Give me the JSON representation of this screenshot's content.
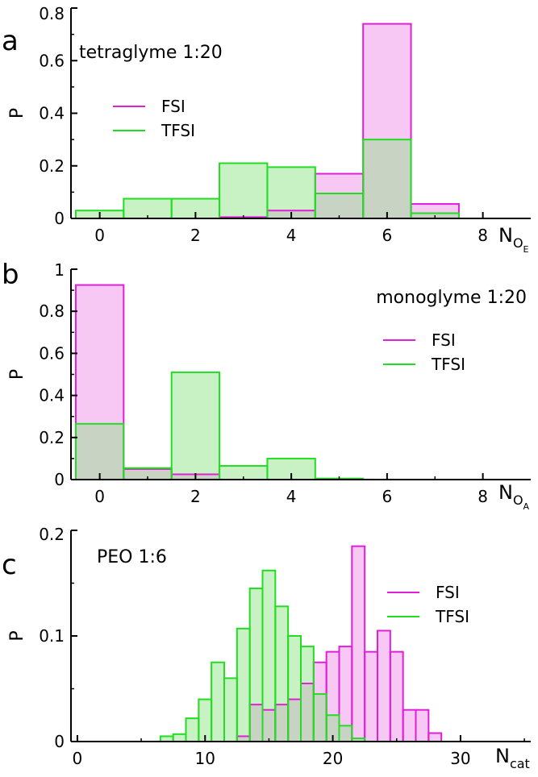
{
  "colors": {
    "fsi": "#e020d8",
    "fsi_fill": "#f7c8f4",
    "tfsi": "#22dd22",
    "tfsi_fill": "#c8f2c4",
    "overlap": "#c8d3c4"
  },
  "chart_data": [
    {
      "type": "bar",
      "panel_letter": "a",
      "title": "tetraglyme 1:20",
      "xlabel": {
        "main": "N",
        "sub1": "O",
        "sub2": "E"
      },
      "ylabel": "P",
      "xlim": [
        -0.6,
        9.0
      ],
      "ylim": [
        0,
        0.8
      ],
      "bin_width": 1,
      "xticks": [
        0,
        2,
        4,
        6,
        8
      ],
      "yticks": [
        0,
        0.2,
        0.4,
        0.6,
        0.8
      ],
      "ytick_labels": [
        "0",
        "0.2",
        "0.4",
        "0.6",
        "0.8"
      ],
      "series": [
        {
          "name": "FSI",
          "x": [
            3,
            4,
            5,
            6,
            7
          ],
          "values": [
            0.005,
            0.03,
            0.17,
            0.74,
            0.055
          ]
        },
        {
          "name": "TFSI",
          "x": [
            0,
            1,
            2,
            3,
            4,
            5,
            6,
            7
          ],
          "values": [
            0.03,
            0.075,
            0.075,
            0.21,
            0.195,
            0.095,
            0.3,
            0.02
          ]
        }
      ]
    },
    {
      "type": "bar",
      "panel_letter": "b",
      "title": "monoglyme 1:20",
      "xlabel": {
        "main": "N",
        "sub1": "O",
        "sub2": "A"
      },
      "ylabel": "P",
      "xlim": [
        -0.6,
        9.0
      ],
      "ylim": [
        0,
        1.0
      ],
      "bin_width": 1,
      "xticks": [
        0,
        2,
        4,
        6,
        8
      ],
      "yticks": [
        0,
        0.2,
        0.4,
        0.6,
        0.8,
        1.0
      ],
      "ytick_labels": [
        "0",
        "0.2",
        "0.4",
        "0.6",
        "0.8",
        "1"
      ],
      "series": [
        {
          "name": "FSI",
          "x": [
            0,
            1,
            2
          ],
          "values": [
            0.925,
            0.05,
            0.025
          ]
        },
        {
          "name": "TFSI",
          "x": [
            0,
            1,
            2,
            3,
            4,
            5
          ],
          "values": [
            0.265,
            0.055,
            0.51,
            0.065,
            0.1,
            0.005
          ]
        }
      ]
    },
    {
      "type": "bar",
      "panel_letter": "c",
      "title": "PEO 1:6",
      "xlabel": {
        "main": "N",
        "sub1": "cat",
        "sub2": ""
      },
      "ylabel": "P",
      "xlim": [
        -0.5,
        35.5
      ],
      "ylim": [
        0,
        0.2
      ],
      "bin_width": 1,
      "xticks": [
        0,
        10,
        20,
        30
      ],
      "yticks": [
        0,
        0.1,
        0.2
      ],
      "ytick_labels": [
        "0",
        "0.1",
        "0.2"
      ],
      "series": [
        {
          "name": "FSI",
          "x": [
            13,
            14,
            15,
            16,
            17,
            18,
            19,
            20,
            21,
            22,
            23,
            24,
            25,
            26,
            27,
            28
          ],
          "values": [
            0.005,
            0.035,
            0.03,
            0.035,
            0.04,
            0.055,
            0.075,
            0.085,
            0.09,
            0.185,
            0.085,
            0.105,
            0.085,
            0.03,
            0.03,
            0.008
          ]
        },
        {
          "name": "TFSI",
          "x": [
            7,
            8,
            9,
            10,
            11,
            12,
            13,
            14,
            15,
            16,
            17,
            18,
            19,
            20,
            21,
            22
          ],
          "values": [
            0.005,
            0.007,
            0.022,
            0.04,
            0.075,
            0.06,
            0.107,
            0.145,
            0.162,
            0.128,
            0.1,
            0.09,
            0.045,
            0.025,
            0.015,
            0.003
          ]
        }
      ]
    }
  ]
}
